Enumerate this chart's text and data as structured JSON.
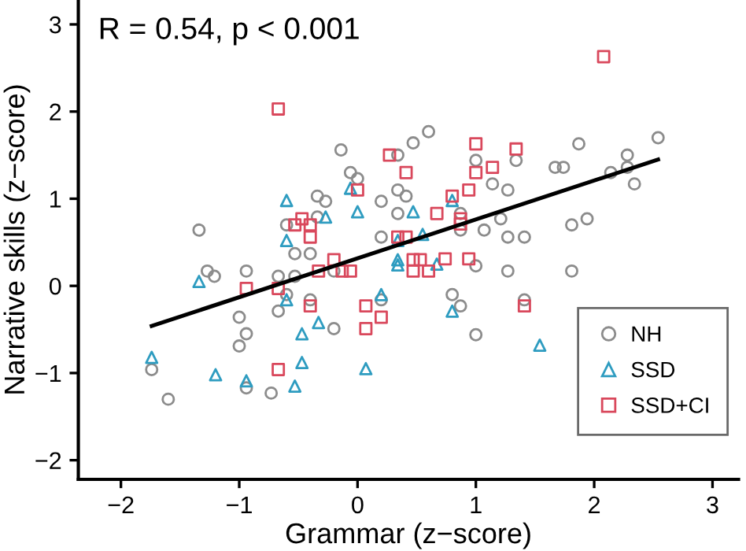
{
  "chart_data": {
    "type": "scatter",
    "xlabel": "Grammar (z−score)",
    "ylabel": "Narrative skills (z−score)",
    "annotations": [
      "R = 0.54, p < 0.001"
    ],
    "xlim": [
      -2.36,
      3.22
    ],
    "ylim": [
      -2.22,
      3.28
    ],
    "xticks": [
      -2,
      -1,
      0,
      1,
      2,
      3
    ],
    "yticks": [
      -2,
      -1,
      0,
      1,
      2,
      3
    ],
    "grid": false,
    "legend": "bottom right",
    "series": [
      {
        "name": "NH",
        "color": "#8c8c8c",
        "marker": "circle",
        "x": [
          -1.34,
          -0.14,
          0.47,
          0.34,
          -0.06,
          0.0,
          -0.34,
          -0.27,
          0.2,
          0.34,
          0.41,
          0.34,
          -0.34,
          -0.6,
          0.2,
          0.6,
          1.34,
          1.0,
          1.87,
          2.54,
          2.28,
          1.67,
          1.74,
          2.14,
          2.28,
          2.34,
          1.14,
          1.27,
          0.87,
          0.87,
          1.07,
          1.21,
          1.27,
          1.41,
          1.81,
          1.94,
          -0.53,
          -0.4,
          -1.27,
          -1.21,
          -0.94,
          -0.67,
          -0.53,
          -0.6,
          -0.2,
          -0.4,
          -0.67,
          -1.0,
          -0.2,
          -0.94,
          -1.0,
          0.2,
          -1.74,
          -1.6,
          -0.94,
          -0.73,
          1.0,
          1.27,
          1.81,
          0.8,
          0.87,
          1.41,
          1.0
        ],
        "values": [
          0.64,
          1.56,
          1.64,
          1.5,
          1.3,
          1.23,
          1.03,
          0.97,
          0.97,
          1.1,
          1.03,
          0.83,
          0.79,
          0.7,
          0.56,
          1.77,
          1.44,
          1.44,
          1.63,
          1.7,
          1.5,
          1.36,
          1.36,
          1.3,
          1.36,
          1.17,
          1.17,
          1.1,
          0.83,
          0.64,
          0.64,
          0.77,
          0.56,
          0.56,
          0.7,
          0.77,
          0.37,
          0.37,
          0.17,
          0.11,
          0.17,
          0.11,
          0.11,
          -0.1,
          0.17,
          -0.16,
          -0.29,
          -0.36,
          -0.49,
          -0.55,
          -0.69,
          -0.16,
          -0.96,
          -1.3,
          -1.17,
          -1.23,
          0.23,
          0.17,
          0.17,
          -0.1,
          -0.23,
          -0.16,
          -0.56
        ]
      },
      {
        "name": "SSD",
        "color": "#2e9cc0",
        "marker": "triangle",
        "x": [
          -0.06,
          -0.6,
          0.0,
          0.47,
          -0.27,
          -0.6,
          0.55,
          0.8,
          0.34,
          -1.34,
          -0.6,
          0.34,
          0.34,
          -0.33,
          -0.47,
          0.2,
          -1.74,
          -1.2,
          -0.94,
          -0.47,
          -0.53,
          0.07,
          0.67,
          0.8,
          1.54
        ],
        "values": [
          1.12,
          0.98,
          0.85,
          0.85,
          0.79,
          0.52,
          0.59,
          0.98,
          0.52,
          0.05,
          -0.16,
          0.3,
          0.24,
          -0.42,
          -0.55,
          -0.1,
          -0.82,
          -1.02,
          -1.09,
          -0.88,
          -1.15,
          -0.95,
          0.25,
          -0.29,
          -0.68
        ]
      },
      {
        "name": "SSD+CI",
        "color": "#d9485c",
        "marker": "square",
        "x": [
          -0.67,
          0.27,
          0.41,
          0.0,
          -0.47,
          -0.53,
          -0.4,
          -0.4,
          0.34,
          0.41,
          2.08,
          1.0,
          1.34,
          1.14,
          1.0,
          0.94,
          0.8,
          0.67,
          0.87,
          0.87,
          -0.94,
          -0.67,
          -0.2,
          -0.33,
          -0.13,
          -0.06,
          0.47,
          0.53,
          0.47,
          0.6,
          -0.4,
          0.07,
          0.2,
          0.07,
          -0.67,
          0.74,
          0.94,
          1.41
        ],
        "values": [
          2.03,
          1.5,
          1.3,
          1.1,
          0.77,
          0.7,
          0.7,
          0.56,
          0.56,
          0.56,
          2.63,
          1.63,
          1.57,
          1.36,
          1.3,
          1.1,
          1.03,
          0.83,
          0.77,
          0.71,
          -0.03,
          -0.03,
          0.3,
          0.17,
          0.17,
          0.17,
          0.3,
          0.3,
          0.17,
          0.17,
          -0.23,
          -0.23,
          -0.36,
          -0.49,
          -0.96,
          0.31,
          0.31,
          -0.23
        ]
      },
      {
        "type": "line",
        "color": "#000000",
        "marker": "none",
        "line_style": "solid",
        "x": [
          -1.74,
          2.54
        ],
        "values": [
          -0.46,
          1.45
        ]
      }
    ]
  }
}
